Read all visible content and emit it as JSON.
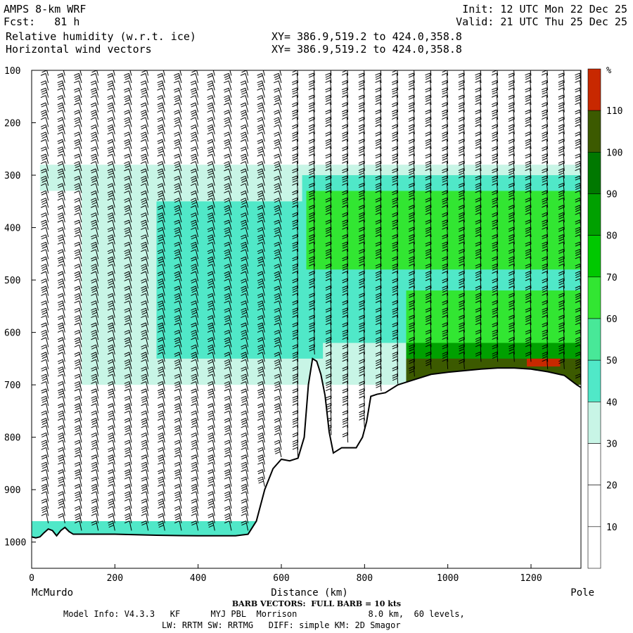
{
  "header": {
    "model": "AMPS 8-km WRF",
    "fcst": "Fcst:   81 h",
    "field1": "Relative humidity (w.r.t. ice)",
    "field2": "Horizontal wind vectors",
    "init": "Init: 12 UTC Mon 22 Dec 25",
    "valid": "Valid: 21 UTC Thu 25 Dec 25",
    "xy1": "XY= 386.9,519.2 to 424.0,358.8",
    "xy2": "XY= 386.9,519.2 to 424.0,358.8"
  },
  "chart_data": {
    "type": "heatmap",
    "xlabel": "Distance (km)",
    "x_left_label": "McMurdo",
    "x_right_label": "Pole",
    "xlim": [
      0,
      1320
    ],
    "ylim": [
      100,
      1050
    ],
    "y_inverted": true,
    "xticks": [
      0,
      200,
      400,
      600,
      800,
      1000,
      1200
    ],
    "yticks": [
      100,
      200,
      300,
      400,
      500,
      600,
      700,
      800,
      900,
      1000
    ],
    "colorbar": {
      "unit": "%",
      "levels": [
        10,
        20,
        30,
        40,
        50,
        60,
        70,
        80,
        90,
        100,
        110
      ],
      "colors": [
        "#ffffff",
        "#ffffff",
        "#ffffff",
        "#c8f5e6",
        "#50e8c8",
        "#48e898",
        "#32e632",
        "#00c800",
        "#00a000",
        "#007800",
        "#3c5a00",
        "#c82800"
      ]
    },
    "terrain": {
      "x": [
        0,
        10,
        20,
        30,
        40,
        50,
        60,
        70,
        80,
        90,
        100,
        130,
        200,
        300,
        400,
        450,
        490,
        520,
        540,
        560,
        580,
        600,
        620,
        640,
        655,
        665,
        675,
        685,
        695,
        705,
        715,
        725,
        735,
        745,
        760,
        780,
        795,
        805,
        815,
        830,
        850,
        880,
        920,
        960,
        1000,
        1040,
        1080,
        1120,
        1160,
        1200,
        1240,
        1280,
        1310,
        1320
      ],
      "p": [
        990,
        992,
        990,
        982,
        975,
        978,
        988,
        978,
        972,
        980,
        985,
        985,
        985,
        987,
        988,
        988,
        988,
        985,
        960,
        900,
        860,
        842,
        845,
        840,
        800,
        700,
        650,
        655,
        680,
        720,
        790,
        830,
        825,
        820,
        820,
        820,
        800,
        770,
        722,
        718,
        715,
        700,
        690,
        680,
        676,
        673,
        670,
        668,
        668,
        670,
        675,
        682,
        700,
        705
      ]
    },
    "rh_layers": [
      {
        "rh_pct": 35,
        "x0": 20,
        "x1": 1320,
        "p0": 280,
        "p1": 330
      },
      {
        "rh_pct": 35,
        "x0": 120,
        "x1": 1320,
        "p0": 330,
        "p1": 700
      },
      {
        "rh_pct": 45,
        "x0": 300,
        "x1": 700,
        "p0": 350,
        "p1": 650
      },
      {
        "rh_pct": 45,
        "x0": 650,
        "x1": 1320,
        "p0": 300,
        "p1": 620
      },
      {
        "rh_pct": 65,
        "x0": 660,
        "x1": 1320,
        "p0": 330,
        "p1": 480
      },
      {
        "rh_pct": 65,
        "x0": 900,
        "x1": 1320,
        "p0": 520,
        "p1": 640
      },
      {
        "rh_pct": 85,
        "x0": 900,
        "x1": 1320,
        "p0": 620,
        "p1": 680
      },
      {
        "rh_pct": 105,
        "x0": 900,
        "x1": 1320,
        "p0": 650,
        "p1": 700
      },
      {
        "rh_pct": 115,
        "x0": 1190,
        "x1": 1270,
        "p0": 650,
        "p1": 665
      },
      {
        "rh_pct": 45,
        "x0": 0,
        "x1": 540,
        "p0": 960,
        "p1": 1050
      }
    ],
    "barb_columns_km": [
      40,
      80,
      120,
      160,
      200,
      240,
      280,
      320,
      360,
      400,
      440,
      480,
      520,
      560,
      600,
      640,
      680,
      720,
      760,
      800,
      840,
      880,
      920,
      960,
      1000,
      1040,
      1080,
      1120,
      1160,
      1200,
      1240,
      1280,
      1320
    ]
  },
  "footer": {
    "title": "BARB VECTORS:  FULL BARB = 10 kts",
    "info1": "Model Info: V4.3.3   KF      MYJ PBL  Morrison              8.0 km,  60 levels,",
    "info2": "LW: RRTM SW: RRTMG   DIFF: simple KM: 2D Smagor"
  }
}
